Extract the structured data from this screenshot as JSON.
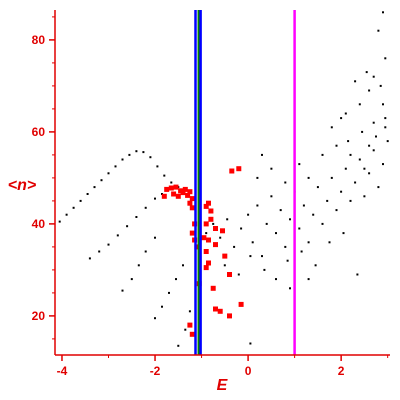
{
  "chart_data": {
    "type": "scatter",
    "title": "",
    "xlabel": "E",
    "ylabel": "<n>",
    "xlim": [
      -4.15,
      3.05
    ],
    "ylim": [
      11.5,
      86.5
    ],
    "x_ticks": [
      -4,
      -2,
      0,
      2
    ],
    "x_tick_labels": [
      "-4",
      "-2",
      "0",
      "2"
    ],
    "y_ticks": [
      20,
      40,
      60,
      80
    ],
    "y_tick_labels": [
      "20",
      "40",
      "60",
      "80"
    ],
    "grid": false,
    "vertical_lines": [
      {
        "x": -1.13,
        "color": "#0000ff"
      },
      {
        "x": -1.06,
        "color": "#008000"
      },
      {
        "x": -1.02,
        "color": "#0000ff"
      },
      {
        "x": 1.0,
        "color": "#ff00ff"
      }
    ],
    "colors": {
      "axis": "#e00000",
      "black_points": "#000000",
      "red_points": "#ff0000"
    },
    "series": [
      {
        "color": "#000000",
        "points": [
          [
            -4.05,
            40.5
          ],
          [
            -3.9,
            42
          ],
          [
            -3.75,
            43.5
          ],
          [
            -3.6,
            45
          ],
          [
            -3.45,
            46.5
          ],
          [
            -3.3,
            48
          ],
          [
            -3.15,
            49.5
          ],
          [
            -3.0,
            51
          ],
          [
            -2.85,
            52.5
          ],
          [
            -2.7,
            54
          ],
          [
            -2.55,
            55
          ],
          [
            -2.4,
            55.8
          ],
          [
            -2.25,
            55.6
          ],
          [
            -2.1,
            54.5
          ],
          [
            -1.95,
            52.5
          ],
          [
            -1.8,
            50.5
          ],
          [
            -1.65,
            49
          ],
          [
            -1.5,
            48
          ],
          [
            -3.4,
            32.5
          ],
          [
            -3.2,
            34
          ],
          [
            -3.0,
            35.5
          ],
          [
            -2.8,
            37.5
          ],
          [
            -2.6,
            39.5
          ],
          [
            -2.4,
            41.5
          ],
          [
            -2.2,
            43.5
          ],
          [
            -2.0,
            45.5
          ],
          [
            -1.85,
            46.5
          ],
          [
            -2.7,
            25.5
          ],
          [
            -2.5,
            28
          ],
          [
            -2.35,
            31
          ],
          [
            -2.2,
            34
          ],
          [
            -2.0,
            37
          ],
          [
            -2.0,
            19.5
          ],
          [
            -1.85,
            22
          ],
          [
            -1.7,
            25
          ],
          [
            -1.55,
            28
          ],
          [
            -1.4,
            31
          ],
          [
            -1.5,
            13.5
          ],
          [
            -1.35,
            17
          ],
          [
            -1.25,
            21
          ],
          [
            -0.9,
            38
          ],
          [
            -0.75,
            40
          ],
          [
            -0.6,
            37
          ],
          [
            -0.45,
            41
          ],
          [
            -0.3,
            35
          ],
          [
            -0.15,
            39
          ],
          [
            0.0,
            42
          ],
          [
            0.1,
            36
          ],
          [
            0.2,
            44
          ],
          [
            0.3,
            33
          ],
          [
            0.4,
            40
          ],
          [
            0.5,
            46
          ],
          [
            0.6,
            38
          ],
          [
            0.7,
            43
          ],
          [
            0.8,
            35
          ],
          [
            0.9,
            41
          ],
          [
            1.0,
            47
          ],
          [
            1.1,
            39
          ],
          [
            1.2,
            44
          ],
          [
            1.3,
            36
          ],
          [
            1.4,
            42
          ],
          [
            1.5,
            48
          ],
          [
            1.6,
            40
          ],
          [
            1.7,
            45
          ],
          [
            1.8,
            50
          ],
          [
            1.9,
            43
          ],
          [
            2.0,
            47
          ],
          [
            2.1,
            52
          ],
          [
            2.2,
            45
          ],
          [
            2.3,
            49
          ],
          [
            2.4,
            54
          ],
          [
            2.5,
            46
          ],
          [
            2.6,
            51
          ],
          [
            2.7,
            56
          ],
          [
            2.8,
            48
          ],
          [
            2.9,
            53
          ],
          [
            3.0,
            58
          ],
          [
            -0.5,
            31
          ],
          [
            -0.2,
            29
          ],
          [
            0.05,
            33
          ],
          [
            0.35,
            30
          ],
          [
            0.6,
            28
          ],
          [
            0.85,
            32
          ],
          [
            1.15,
            34
          ],
          [
            1.45,
            31
          ],
          [
            1.75,
            36
          ],
          [
            2.05,
            38
          ],
          [
            2.35,
            29
          ],
          [
            0.2,
            50
          ],
          [
            0.5,
            52
          ],
          [
            0.8,
            49
          ],
          [
            1.1,
            53
          ],
          [
            1.3,
            50
          ],
          [
            1.6,
            55
          ],
          [
            1.9,
            57
          ],
          [
            2.15,
            58
          ],
          [
            2.45,
            60
          ],
          [
            2.7,
            62
          ],
          [
            2.95,
            61
          ],
          [
            1.8,
            61
          ],
          [
            2.1,
            64
          ],
          [
            2.4,
            66
          ],
          [
            2.6,
            69
          ],
          [
            2.85,
            70
          ],
          [
            2.55,
            73
          ],
          [
            2.95,
            63
          ],
          [
            2.3,
            71
          ],
          [
            2.75,
            59
          ],
          [
            2.0,
            63
          ],
          [
            2.2,
            55
          ],
          [
            2.6,
            57
          ],
          [
            2.9,
            66
          ],
          [
            2.5,
            52
          ],
          [
            2.8,
            82
          ],
          [
            2.9,
            86
          ],
          [
            2.7,
            72
          ],
          [
            2.95,
            76
          ],
          [
            0.05,
            14
          ],
          [
            0.9,
            26
          ],
          [
            1.3,
            28
          ],
          [
            0.3,
            55
          ]
        ]
      },
      {
        "color": "#ff0000",
        "points": [
          [
            -1.75,
            47.5
          ],
          [
            -1.65,
            47.8
          ],
          [
            -1.55,
            48
          ],
          [
            -1.45,
            47.2
          ],
          [
            -1.35,
            47.5
          ],
          [
            -1.25,
            47
          ],
          [
            -1.6,
            46.5
          ],
          [
            -1.5,
            46
          ],
          [
            -1.4,
            46.8
          ],
          [
            -1.3,
            46.2
          ],
          [
            -1.2,
            45.5
          ],
          [
            -1.8,
            46
          ],
          [
            -1.25,
            44.5
          ],
          [
            -1.2,
            43.5
          ],
          [
            -0.85,
            44.5
          ],
          [
            -0.9,
            43.8
          ],
          [
            -0.8,
            42.8
          ],
          [
            -0.8,
            41
          ],
          [
            -0.9,
            40
          ],
          [
            -0.95,
            37
          ],
          [
            -0.85,
            36.5
          ],
          [
            -0.7,
            39
          ],
          [
            -0.55,
            38.5
          ],
          [
            -1.2,
            38
          ],
          [
            -1.15,
            40
          ],
          [
            -1.15,
            36.5
          ],
          [
            -1.1,
            35
          ],
          [
            -0.9,
            34
          ],
          [
            -0.85,
            31.5
          ],
          [
            -0.9,
            30.5
          ],
          [
            -0.7,
            35.5
          ],
          [
            -0.5,
            33
          ],
          [
            -0.4,
            29
          ],
          [
            -1.05,
            27
          ],
          [
            -0.75,
            26
          ],
          [
            -0.7,
            21.5
          ],
          [
            -0.6,
            21
          ],
          [
            -0.15,
            22.5
          ],
          [
            -0.4,
            20
          ],
          [
            -1.25,
            18
          ],
          [
            -1.2,
            16
          ],
          [
            -0.2,
            52
          ],
          [
            -0.35,
            51.5
          ]
        ]
      }
    ]
  }
}
